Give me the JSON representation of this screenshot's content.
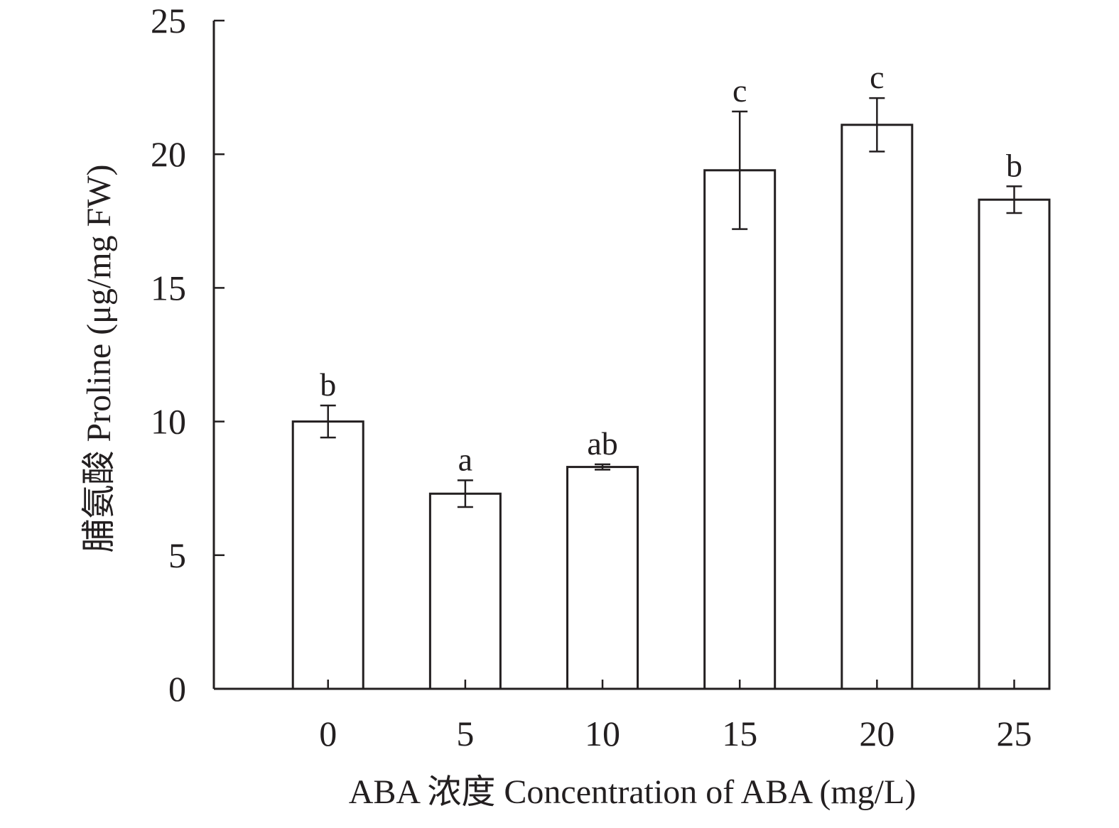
{
  "chart_data": {
    "type": "bar",
    "title": "",
    "xlabel": "ABA 浓度 Concentration of ABA (mg/L)",
    "ylabel": "脯氨酸 Proline (μg/mg FW)",
    "categories": [
      "0",
      "5",
      "10",
      "15",
      "20",
      "25"
    ],
    "series": [
      {
        "values": [
          10.0,
          7.3,
          8.3,
          19.4,
          21.1,
          18.3
        ],
        "errors": [
          0.6,
          0.5,
          0.1,
          2.2,
          1.0,
          0.5
        ],
        "significance": [
          "b",
          "a",
          "ab",
          "c",
          "c",
          "b"
        ]
      }
    ],
    "ylim": [
      0,
      25
    ],
    "yticks": [
      "0",
      "5",
      "10",
      "15",
      "20",
      "25"
    ],
    "grid": false,
    "legend": "none",
    "colors": {
      "bar_fill": "#ffffff",
      "bar_stroke": "#231f20",
      "axis": "#231f20",
      "text": "#231f20"
    }
  }
}
